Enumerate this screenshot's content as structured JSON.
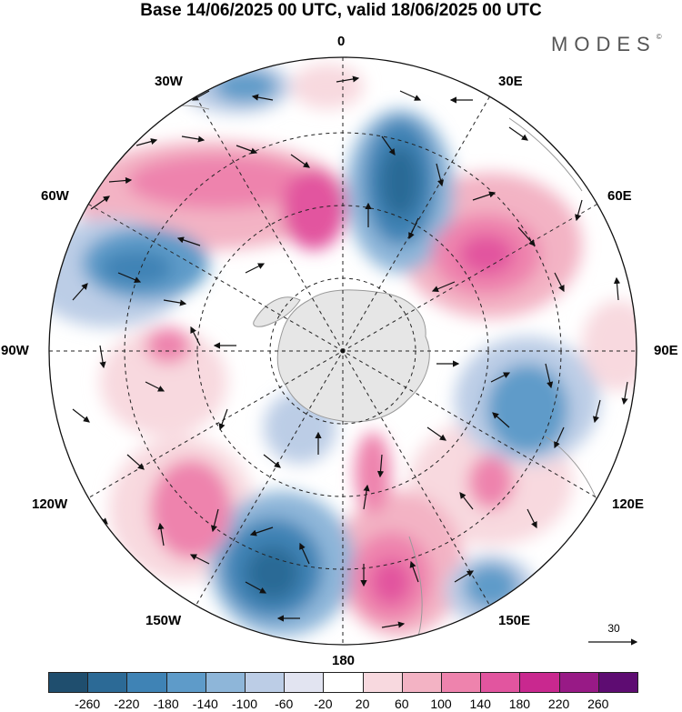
{
  "title": "Base 14/06/2025 00 UTC, valid 18/06/2025 00 UTC",
  "brand": {
    "name": "MODES",
    "mark": "©"
  },
  "longitude_labels": {
    "lon_0": "0",
    "lon_30e": "30E",
    "lon_60e": "60E",
    "lon_90e": "90E",
    "lon_120e": "120E",
    "lon_150e": "150E",
    "lon_180": "180",
    "lon_150w": "150W",
    "lon_120w": "120W",
    "lon_90w": "90W",
    "lon_60w": "60W",
    "lon_30w": "30W"
  },
  "reference_vector": {
    "label": "30"
  },
  "colorbar": {
    "ticks": [
      "-260",
      "-220",
      "-180",
      "-140",
      "-100",
      "-60",
      "-20",
      "20",
      "60",
      "100",
      "140",
      "180",
      "220",
      "260"
    ],
    "colors": [
      "#1f4e6e",
      "#2c6a96",
      "#3f83b5",
      "#5e9bc9",
      "#8eb6d9",
      "#bccde6",
      "#e2e4f1",
      "#ffffff",
      "#f8d9df",
      "#f3b3c4",
      "#ee83ad",
      "#e2559f",
      "#c9288f",
      "#981a86",
      "#5e0c72"
    ]
  },
  "map_features": {
    "projection": "south polar stereographic",
    "field": "shaded anomaly with wind vectors",
    "positive_color": "#e2559f",
    "negative_color": "#3f83b5",
    "land_color": "#e6e6e6"
  }
}
